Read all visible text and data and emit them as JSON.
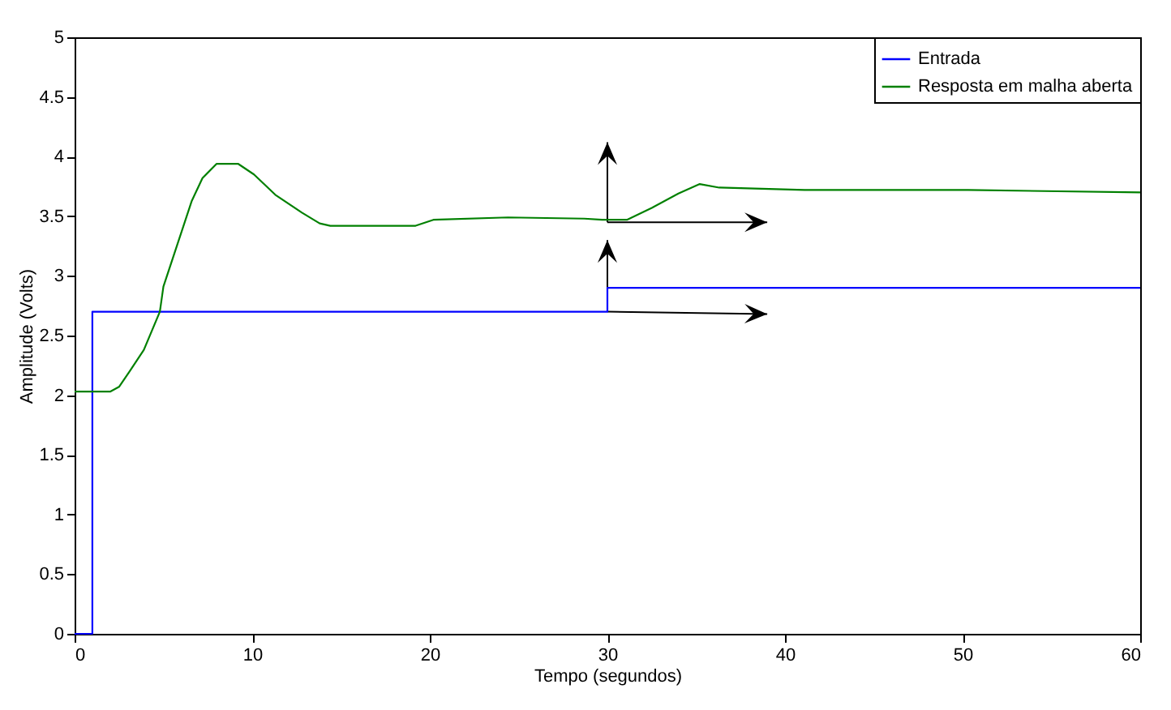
{
  "chart_data": {
    "type": "line",
    "xlabel": "Tempo (segundos)",
    "ylabel": "Amplitude (Volts)",
    "xlim": [
      0,
      60
    ],
    "xticks": [
      0,
      10,
      20,
      30,
      40,
      50,
      60
    ],
    "ylim": [
      0,
      5
    ],
    "yticks": [
      0,
      0.5,
      1,
      1.5,
      2,
      2.5,
      3,
      3.5,
      4,
      4.5,
      5
    ],
    "grid": false,
    "legend": "top right",
    "series": [
      {
        "name": "Entrada",
        "type": "step",
        "color": "#0000ff",
        "x": [
          0,
          1,
          30,
          60
        ],
        "values": [
          0,
          2.7,
          2.9,
          2.9
        ]
      },
      {
        "name": "Resposta em malha aberta",
        "type": "line",
        "color": "#008000",
        "x": [
          0,
          2.0,
          2.5,
          3.1,
          3.9,
          4.8,
          5.0,
          5.8,
          6.6,
          7.2,
          8.0,
          9.2,
          10.1,
          11.3,
          12.8,
          13.8,
          14.4,
          19.2,
          20.2,
          24.4,
          28.7,
          29.7,
          31.1,
          32.5,
          34.0,
          35.2,
          36.3,
          41.1,
          50.3,
          60
        ],
        "values": [
          2.03,
          2.03,
          2.07,
          2.2,
          2.38,
          2.7,
          2.91,
          3.27,
          3.63,
          3.82,
          3.94,
          3.94,
          3.85,
          3.68,
          3.53,
          3.44,
          3.42,
          3.42,
          3.47,
          3.49,
          3.48,
          3.47,
          3.47,
          3.57,
          3.69,
          3.77,
          3.74,
          3.72,
          3.72,
          3.7
        ]
      }
    ]
  }
}
